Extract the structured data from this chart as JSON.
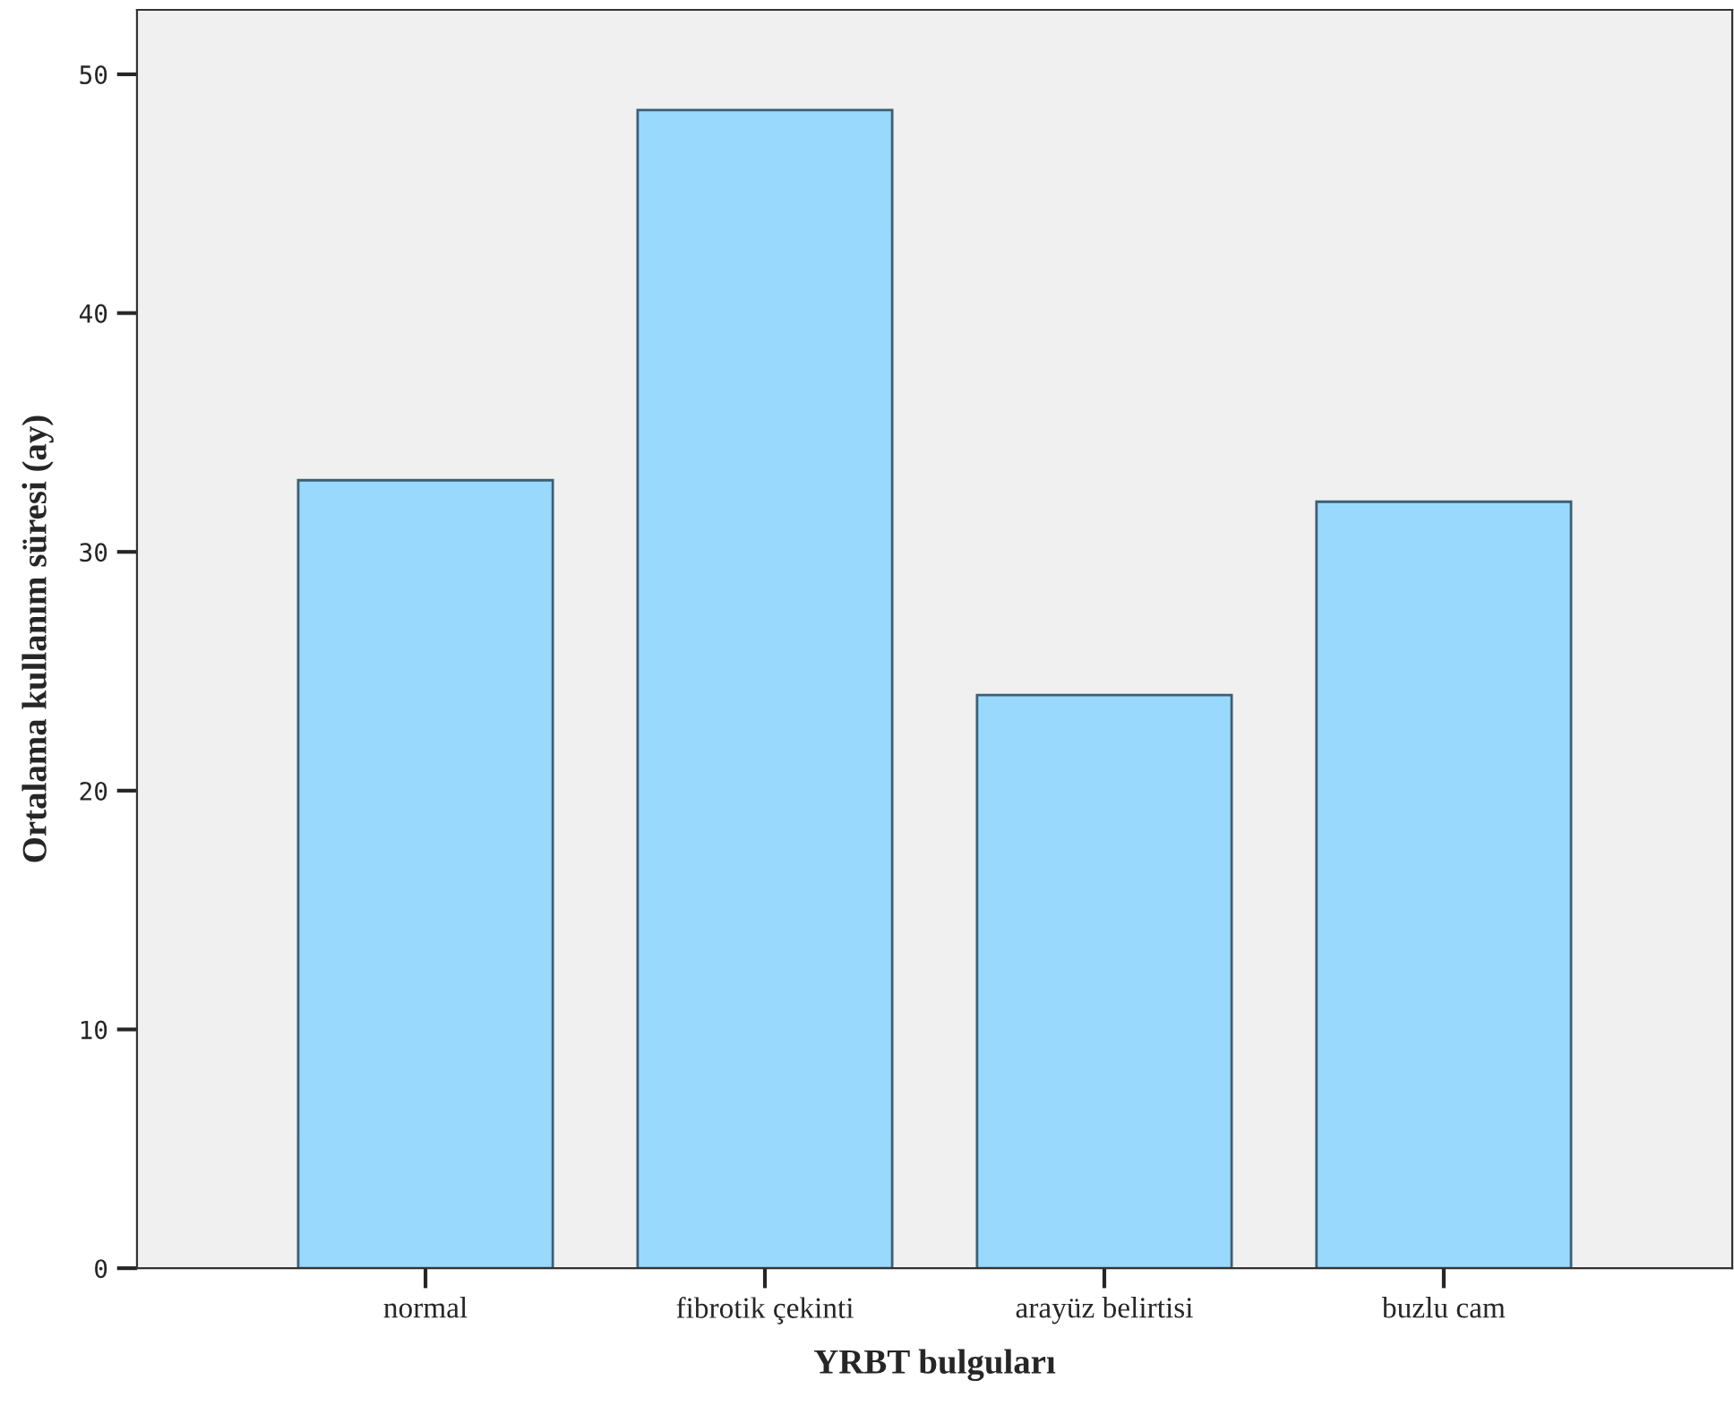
{
  "chart_data": {
    "type": "bar",
    "xlabel": "YRBT bulguları",
    "ylabel": "Ortalama kullanım süresi (ay)",
    "categories": [
      "normal",
      "fibrotik çekinti",
      "arayüz belirtisi",
      "buzlu cam"
    ],
    "values": [
      33.0,
      48.5,
      24.0,
      32.1
    ],
    "color": "#99d9fe",
    "ylim": [
      0,
      52.7
    ],
    "yticks": [
      0,
      10,
      20,
      30,
      40,
      50
    ],
    "grid": false
  }
}
